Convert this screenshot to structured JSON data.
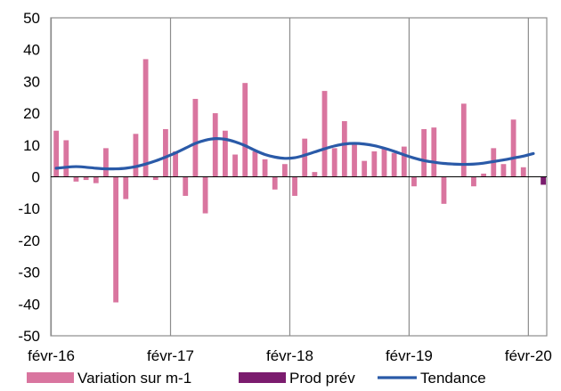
{
  "chart_data": {
    "type": "bar",
    "ylim": [
      -50,
      50
    ],
    "yticks": [
      -50,
      -40,
      -30,
      -20,
      -10,
      0,
      10,
      20,
      30,
      40,
      50
    ],
    "xtick_labels": [
      "févr-16",
      "févr-17",
      "févr-18",
      "févr-19",
      "févr-20"
    ],
    "xtick_index": [
      0,
      12,
      24,
      36,
      48
    ],
    "n_months": 50,
    "grid": "vertical lines at xtick positions",
    "legend_position": "bottom",
    "series": [
      {
        "name": "Variation sur m-1",
        "kind": "bar",
        "color": "#d9759f",
        "values": [
          14.5,
          11.5,
          -1.5,
          -1,
          -2,
          9,
          -39.5,
          -7,
          13.5,
          37,
          -1,
          15,
          8,
          -6,
          24.5,
          -11.5,
          20,
          14.5,
          7,
          29.5,
          8,
          5.5,
          -4,
          4,
          -6,
          12,
          1.5,
          27,
          9,
          17.5,
          10.5,
          5,
          8,
          9,
          7.5,
          9.5,
          -3,
          15,
          15.5,
          -8.5,
          0,
          23,
          -3,
          1,
          9,
          4,
          18,
          3,
          null,
          null
        ]
      },
      {
        "name": "Prod prév",
        "kind": "bar",
        "color": "#7b1c6e",
        "values": [
          null,
          null,
          null,
          null,
          null,
          null,
          null,
          null,
          null,
          null,
          null,
          null,
          null,
          null,
          null,
          null,
          null,
          null,
          null,
          null,
          null,
          null,
          null,
          null,
          null,
          null,
          null,
          null,
          null,
          null,
          null,
          null,
          null,
          null,
          null,
          null,
          null,
          null,
          null,
          null,
          null,
          null,
          null,
          null,
          null,
          null,
          null,
          null,
          null,
          -2.5
        ]
      },
      {
        "name": "Tendance",
        "kind": "line",
        "color": "#2a5aa8",
        "values": [
          2.7,
          3.0,
          3.2,
          3.0,
          2.7,
          2.5,
          2.5,
          2.7,
          3.2,
          4.0,
          5.0,
          6.2,
          7.5,
          9.0,
          10.5,
          11.5,
          12.0,
          11.8,
          11.0,
          9.8,
          8.3,
          7.0,
          6.2,
          5.8,
          6.0,
          6.8,
          7.8,
          8.8,
          9.7,
          10.3,
          10.5,
          10.3,
          9.8,
          9.0,
          8.0,
          6.9,
          5.9,
          5.1,
          4.6,
          4.2,
          4.0,
          3.9,
          4.0,
          4.3,
          4.8,
          5.3,
          5.9,
          6.5,
          7.3,
          null
        ]
      }
    ]
  }
}
